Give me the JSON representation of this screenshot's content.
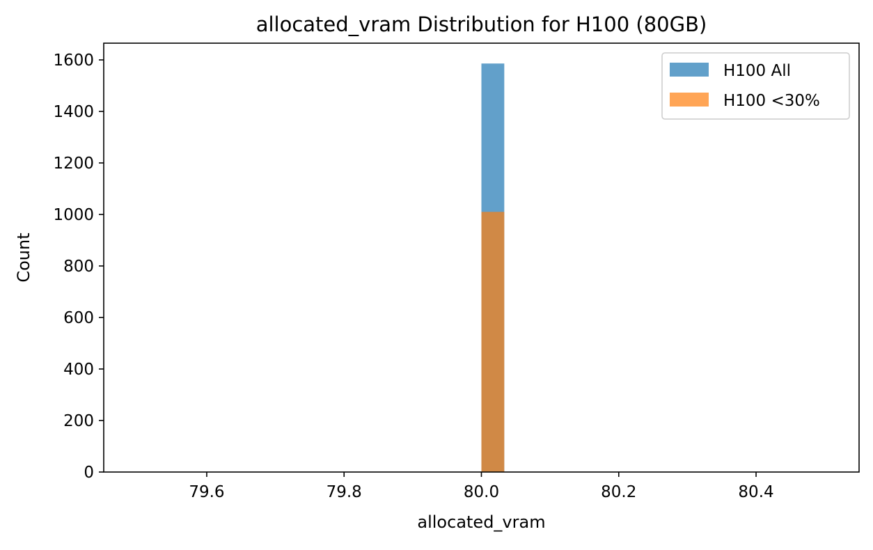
{
  "chart_data": {
    "type": "bar",
    "title": "allocated_vram Distribution for H100 (80GB)",
    "xlabel": "allocated_vram",
    "ylabel": "Count",
    "xlim": [
      79.45,
      80.55
    ],
    "ylim": [
      0,
      1665
    ],
    "xticks": [
      79.6,
      79.8,
      80.0,
      80.2,
      80.4
    ],
    "xtick_labels": [
      "79.6",
      "79.8",
      "80.0",
      "80.2",
      "80.4"
    ],
    "yticks": [
      0,
      200,
      400,
      600,
      800,
      1000,
      1200,
      1400,
      1600
    ],
    "ytick_labels": [
      "0",
      "200",
      "400",
      "600",
      "800",
      "1000",
      "1200",
      "1400",
      "1600"
    ],
    "grid": false,
    "legend_position": "top-right",
    "series": [
      {
        "name": "H100 All",
        "color": "#1f77b4",
        "opacity": 0.7,
        "bins": [
          {
            "x_start": 80.0,
            "x_end": 80.0333,
            "count": 1586
          }
        ]
      },
      {
        "name": "H100 <30%",
        "color": "#ff7f0e",
        "opacity": 0.7,
        "bins": [
          {
            "x_start": 80.0,
            "x_end": 80.0333,
            "count": 1010
          }
        ]
      }
    ]
  }
}
